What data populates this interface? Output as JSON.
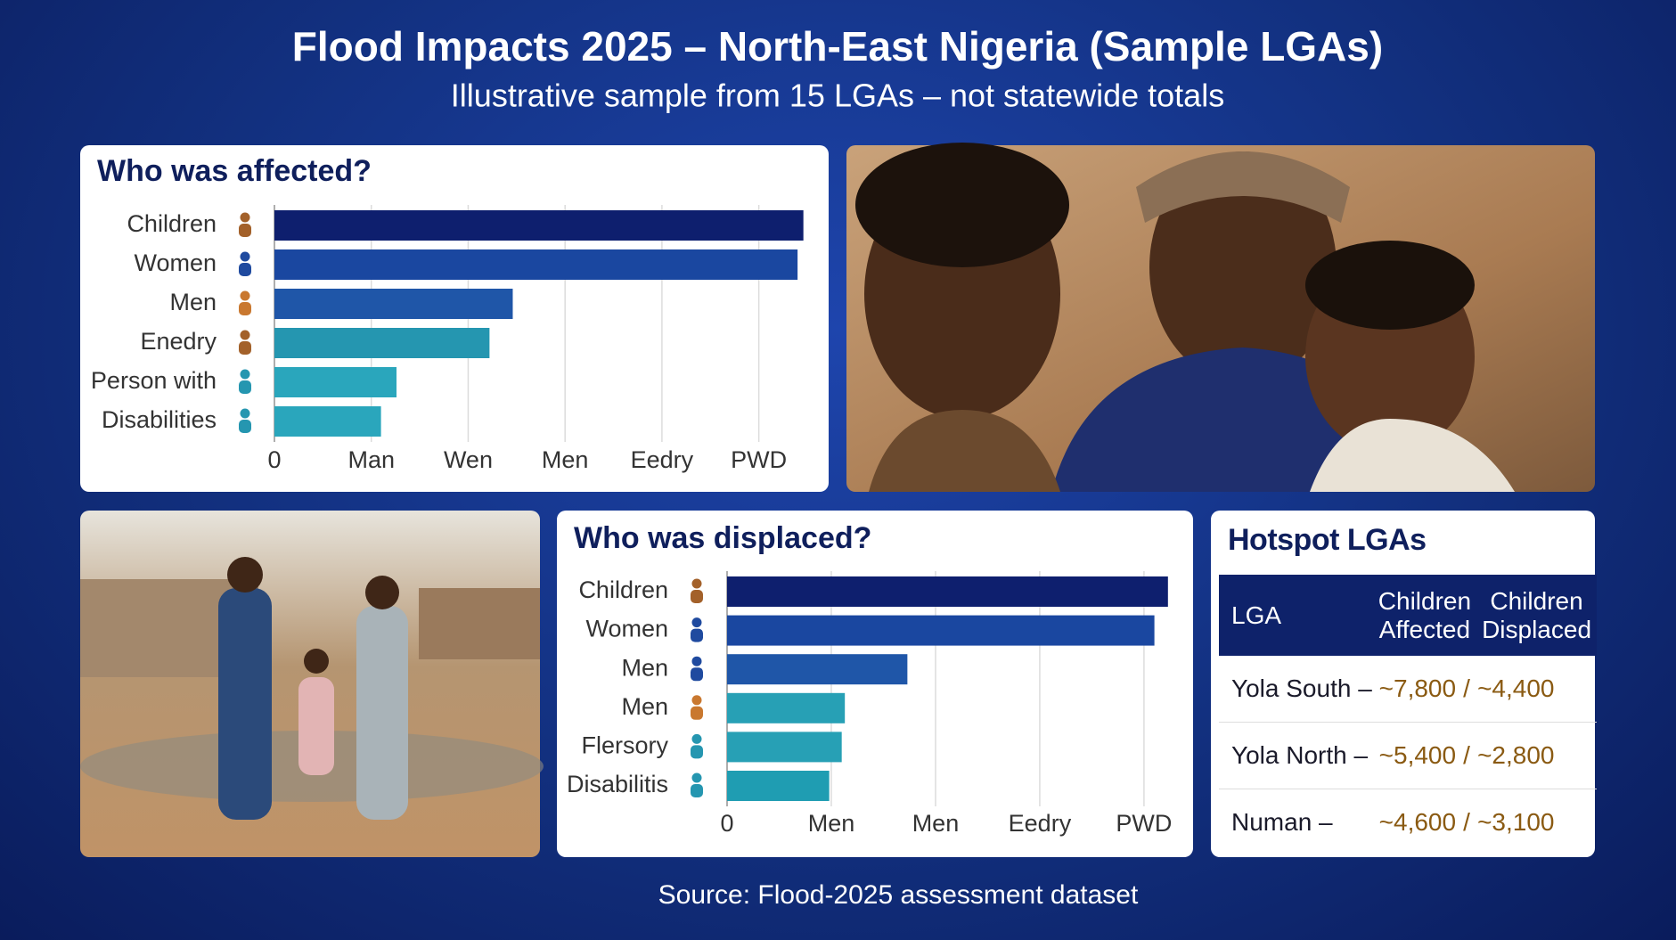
{
  "title": "Flood Impacts 2025 – North-East Nigeria (Sample LGAs)",
  "subtitle": "Illustrative sample from 15 LGAs – not statewide totals",
  "chart_data": [
    {
      "type": "bar",
      "orientation": "horizontal",
      "title": "Who was affected?",
      "categories": [
        "Children",
        "Women",
        "Men",
        "Enedry",
        "Person with",
        "Disabilities"
      ],
      "values": [
        5.46,
        5.4,
        2.46,
        2.22,
        1.26,
        1.1
      ],
      "colors": [
        "#0e1f6e",
        "#1a47a0",
        "#1f56a8",
        "#2596b0",
        "#2aa6bc",
        "#2aa6bc"
      ],
      "icon_colors": [
        "#a3612a",
        "#1f4a9f",
        "#c9782f",
        "#a3612a",
        "#2596b0",
        "#2596b0"
      ],
      "xlim": [
        0,
        5.5
      ],
      "xticks": [
        0,
        {
          "value": 1,
          "label": "Man"
        },
        {
          "value": 2,
          "label": "Wen"
        },
        {
          "value": 3,
          "label": "Men"
        },
        {
          "value": 4,
          "label": "Eedry"
        },
        {
          "value": 5,
          "label": "PWD"
        }
      ],
      "grid": true
    },
    {
      "type": "bar",
      "orientation": "horizontal",
      "title": "Who was displaced?",
      "categories": [
        "Children",
        "Women",
        "Men",
        "Men",
        "Flersory",
        "Disabilitis"
      ],
      "values": [
        4.23,
        4.1,
        1.73,
        1.13,
        1.1,
        0.98
      ],
      "colors": [
        "#0e1f6e",
        "#1a47a0",
        "#1f56a8",
        "#27a0b5",
        "#27a0b5",
        "#1f9db2"
      ],
      "icon_colors": [
        "#a3612a",
        "#1f4a9f",
        "#1f4a9f",
        "#c9782f",
        "#2596b0",
        "#2596b0"
      ],
      "xlim": [
        0,
        4.3
      ],
      "xticks": [
        0,
        {
          "value": 1,
          "label": "Men"
        },
        {
          "value": 2,
          "label": "Men"
        },
        {
          "value": 3,
          "label": "Eedry"
        },
        {
          "value": 4,
          "label": "PWD"
        }
      ],
      "grid": true
    }
  ],
  "table": {
    "title": "Hotspot LGAs",
    "columns": [
      "LGA",
      "Children Affected",
      "Children Displaced"
    ],
    "separator": "/",
    "rows": [
      [
        "Yola South –",
        "~7,800",
        "~4,400"
      ],
      [
        "Yola North –",
        "~5,400",
        "~2,800"
      ],
      [
        "Numan –",
        "~4,600",
        "~3,100"
      ]
    ]
  },
  "source": "Source: Flood-2025 assessment dataset"
}
